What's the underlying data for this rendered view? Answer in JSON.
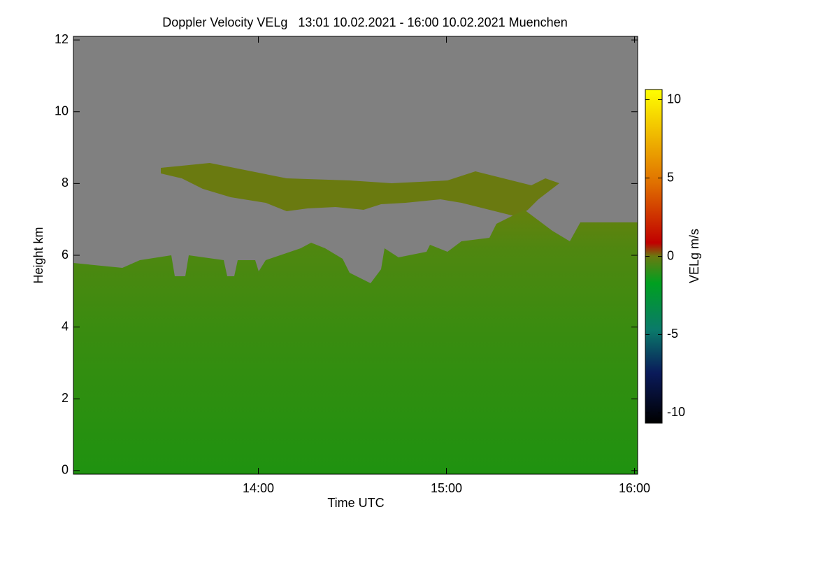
{
  "chart_data": {
    "type": "heatmap",
    "title": "Doppler Velocity VELg   13:01 10.02.2021 - 16:00 10.02.2021 Muenchen",
    "x_label": "Time UTC",
    "y_label": "Height km",
    "xlim": [
      781,
      961
    ],
    "xticks": [
      {
        "value": 840,
        "label": "14:00"
      },
      {
        "value": 900,
        "label": "15:00"
      },
      {
        "value": 960,
        "label": "16:00"
      }
    ],
    "ylim": [
      -0.1,
      12.1
    ],
    "yticks": [
      0,
      2,
      4,
      6,
      8,
      10,
      12
    ],
    "colorbar": {
      "label": "VELg m/s",
      "lim": [
        -10.65,
        10.65
      ],
      "ticks": [
        -10,
        -5,
        0,
        5,
        10
      ]
    }
  }
}
